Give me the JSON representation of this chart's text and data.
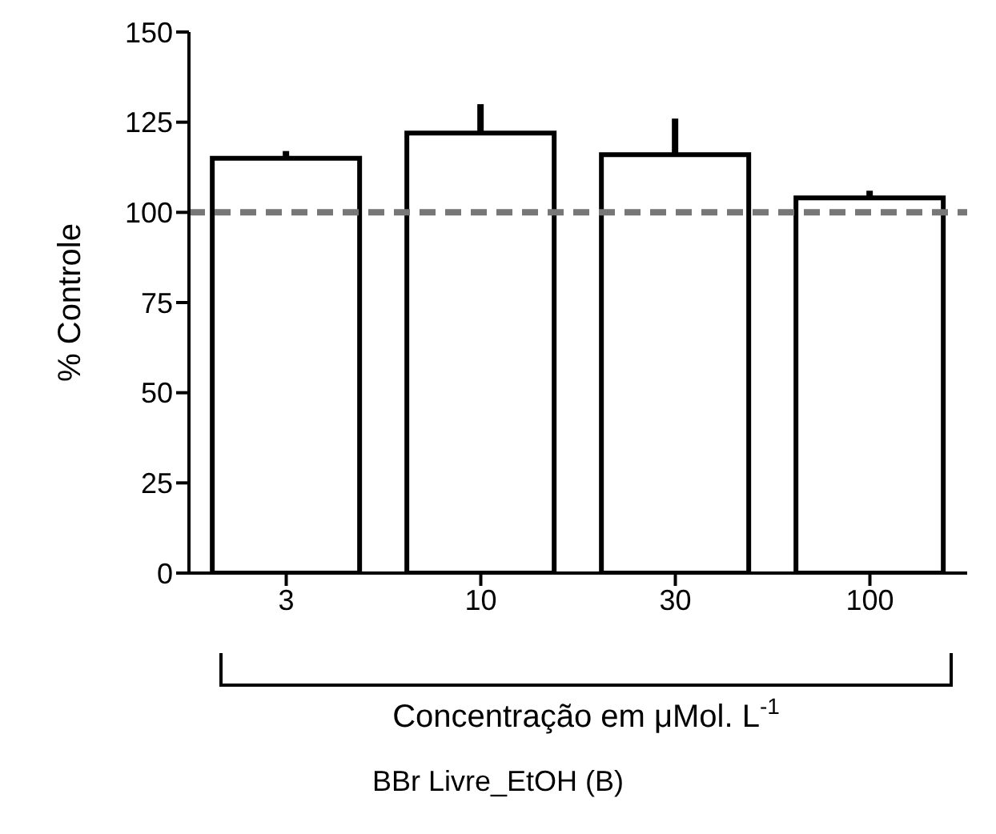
{
  "chart_data": {
    "type": "bar",
    "title": "BBr Livre_EtOH (B)",
    "xlabel": "Concentração em μMol. L$^{-1}$",
    "ylabel": "% Controle",
    "categories": [
      "3",
      "10",
      "30",
      "100"
    ],
    "values": [
      115,
      122,
      116,
      104
    ],
    "errors": [
      [
        115,
        117
      ],
      [
        122,
        130
      ],
      [
        116,
        126
      ],
      [
        104,
        106
      ]
    ],
    "color": "#ffffff",
    "ylim": [
      0,
      150
    ],
    "yticks": [
      0,
      25,
      50,
      75,
      100,
      125,
      150
    ],
    "ref_lines": [
      {
        "axis": "y",
        "value": 100,
        "color": "#777777",
        "line_style": "dashed"
      }
    ],
    "grid": false,
    "legend": false
  }
}
